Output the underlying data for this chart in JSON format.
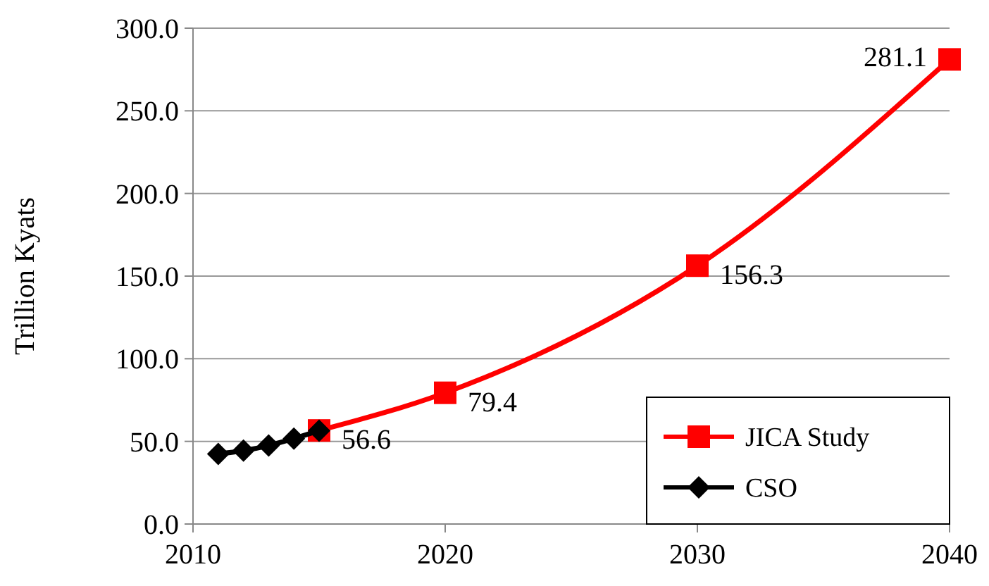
{
  "chart_data": {
    "type": "line",
    "ylabel": "Trillion Kyats",
    "xlim": [
      2010,
      2040
    ],
    "xticks": [
      2010,
      2020,
      2030,
      2040
    ],
    "ylim": [
      0,
      300
    ],
    "yticks": [
      {
        "value": 0,
        "label": "0.0"
      },
      {
        "value": 50,
        "label": "50.0"
      },
      {
        "value": 100,
        "label": "100.0"
      },
      {
        "value": 150,
        "label": "150.0"
      },
      {
        "value": 200,
        "label": "200.0"
      },
      {
        "value": 250,
        "label": "250.0"
      },
      {
        "value": 300,
        "label": "300.0"
      }
    ],
    "grid": "y",
    "legend": "bottom right",
    "series": [
      {
        "name": "JICA Study",
        "color": "#ff0000",
        "marker": "square",
        "x": [
          2015,
          2020,
          2030,
          2040
        ],
        "values": [
          56.6,
          79.4,
          156.3,
          281.1
        ],
        "value_labels": [
          "56.6",
          "79.4",
          "156.3",
          "281.1"
        ]
      },
      {
        "name": "CSO",
        "color": "#000000",
        "marker": "diamond",
        "x": [
          2011,
          2012,
          2013,
          2014,
          2015
        ],
        "values": [
          42.4,
          44.4,
          47.5,
          51.7,
          56.5
        ]
      }
    ]
  }
}
